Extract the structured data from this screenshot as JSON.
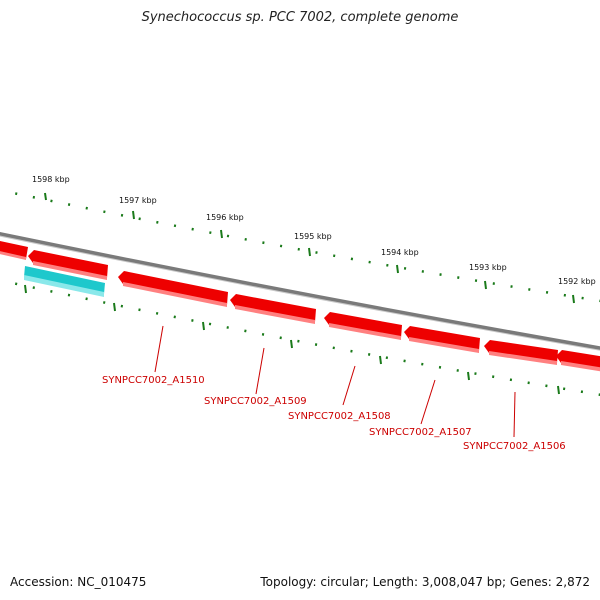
{
  "title": "Synechococcus sp. PCC 7002, complete genome",
  "accession_text": "Accession: NC_010475",
  "summary_text": "Topology: circular; Length: 3,008,047 bp; Genes: 2,872",
  "scale_ticks": [
    "1598 kbp",
    "1597 kbp",
    "1596 kbp",
    "1595 kbp",
    "1594 kbp",
    "1593 kbp",
    "1592 kbp"
  ],
  "gene_labels": [
    "SYNPCC7002_A1510",
    "SYNPCC7002_A1509",
    "SYNPCC7002_A1508",
    "SYNPCC7002_A1507",
    "SYNPCC7002_A1506"
  ],
  "colors": {
    "backbone": "#7a7a7a",
    "gene": "#ee0000",
    "gene_highlight": "#ff6a6a",
    "feature": "#1ec8cc",
    "tick": "#1a7a1a",
    "label": "#cc0000"
  }
}
